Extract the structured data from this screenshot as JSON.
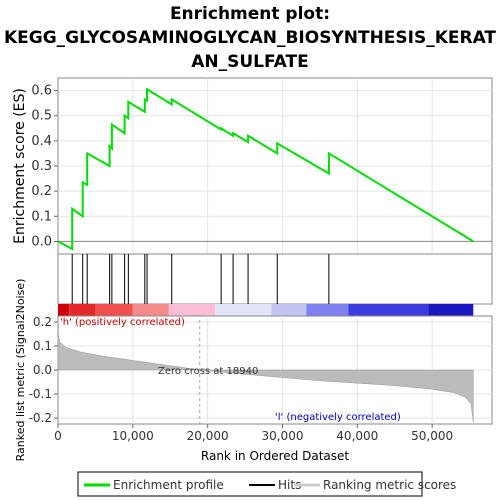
{
  "chart_data": {
    "type": "line",
    "title_lines": [
      "Enrichment plot:",
      "KEGG_GLYCOSAMINOGLYCAN_BIOSYNTHESIS_KERAT",
      "AN_SULFATE"
    ],
    "es_panel": {
      "ylabel": "Enrichment score (ES)",
      "ylim": [
        -0.05,
        0.65
      ],
      "yticks": [
        "0.0",
        "0.1",
        "0.2",
        "0.3",
        "0.4",
        "0.5",
        "0.6"
      ],
      "series": {
        "name": "Enrichment profile",
        "color": "#00dd00",
        "x": [
          0,
          1900,
          1900,
          3300,
          3300,
          3900,
          3900,
          6900,
          6900,
          7200,
          7200,
          8900,
          8900,
          9400,
          9400,
          11600,
          11600,
          11900,
          11900,
          15200,
          15200,
          21800,
          21800,
          23400,
          23400,
          25400,
          25400,
          29300,
          29300,
          36200,
          36200,
          55500
        ],
        "y": [
          0.0,
          -0.03,
          0.13,
          0.1,
          0.235,
          0.225,
          0.35,
          0.3,
          0.38,
          0.37,
          0.465,
          0.43,
          0.5,
          0.49,
          0.555,
          0.515,
          0.565,
          0.56,
          0.605,
          0.545,
          0.565,
          0.445,
          0.45,
          0.42,
          0.43,
          0.395,
          0.42,
          0.35,
          0.39,
          0.27,
          0.35,
          0.0
        ]
      }
    },
    "hits": {
      "name": "Hits",
      "positions": [
        1900,
        3300,
        3900,
        6900,
        7200,
        8900,
        9400,
        11600,
        11900,
        15200,
        21800,
        23400,
        25400,
        29300,
        36200
      ]
    },
    "rank_panel": {
      "ylabel": "Ranked list metric (Signal2Noise)",
      "ylim": [
        -0.225,
        0.225
      ],
      "yticks": [
        "0.2",
        "0.1",
        "0.0",
        "-0.1",
        "-0.2"
      ],
      "legend_name": "Ranking metric scores",
      "zero_cross_label": "Zero cross at 18940",
      "zero_cross": 18940,
      "positive_label": "'h' (positively correlated)",
      "negative_label": "'l' (negatively correlated)",
      "curve_x": [
        0,
        200,
        1000,
        3000,
        6000,
        10000,
        15000,
        18940,
        25000,
        35000,
        45000,
        50000,
        53000,
        54500,
        55200,
        55500
      ],
      "curve_y": [
        0.16,
        0.12,
        0.095,
        0.075,
        0.058,
        0.04,
        0.018,
        0.0,
        -0.018,
        -0.045,
        -0.065,
        -0.08,
        -0.095,
        -0.115,
        -0.14,
        -0.22
      ]
    },
    "xlabel": "Rank in Ordered Dataset",
    "xlim": [
      0,
      58000
    ],
    "xticks": [
      "0",
      "10,000",
      "20,000",
      "30,000",
      "40,000",
      "50,000"
    ],
    "xtick_values": [
      0,
      10000,
      20000,
      30000,
      40000,
      50000
    ]
  },
  "legend": {
    "items": [
      {
        "label": "Enrichment profile",
        "color": "#00dd00"
      },
      {
        "label": "Hits",
        "color": "#000000"
      },
      {
        "label": "Ranking metric scores",
        "color": "#cccccc"
      }
    ]
  }
}
